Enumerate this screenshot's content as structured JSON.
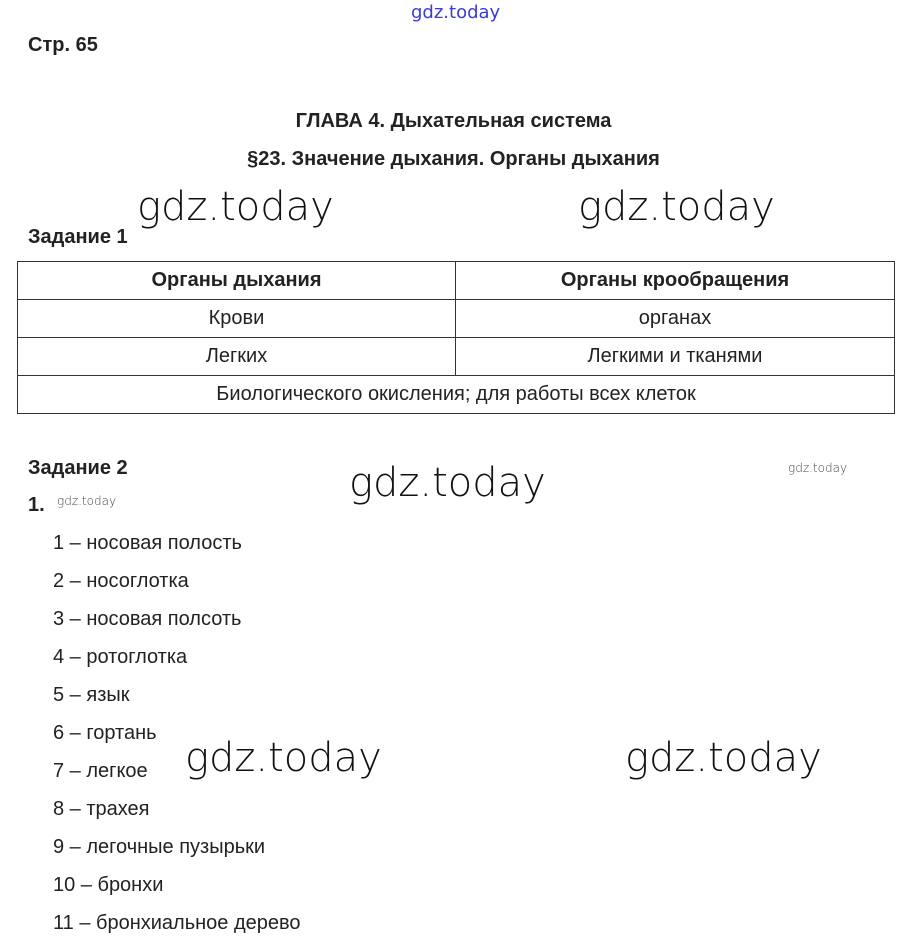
{
  "watermark": "gdz.today",
  "page_label": "Стр. 65",
  "chapter_title": "ГЛАВА 4. Дыхательная система",
  "section_title": "§23. Значение дыхания. Органы дыхания",
  "task1": {
    "title": "Задание 1",
    "headers": [
      "Органы дыхания",
      "Органы крообращения"
    ],
    "rows": [
      [
        "Крови",
        "органах"
      ],
      [
        "Легких",
        "Легкими и тканями"
      ]
    ],
    "footer": "Биологического окисления; для работы всех клеток"
  },
  "task2": {
    "title": "Задание 2",
    "number": "1.",
    "items": [
      "1 – носовая полость",
      "2 – носоглотка",
      "3 – носовая полсоть",
      "4 – ротоглотка",
      "5 – язык",
      "6 – гортань",
      "7 – легкое",
      "8 – трахея",
      "9 – легочные пузырьки",
      "10 – бронхи",
      "11 – бронхиальное дерево"
    ]
  },
  "colors": {
    "watermark_top": "#3a3ad8",
    "text": "#222222"
  }
}
